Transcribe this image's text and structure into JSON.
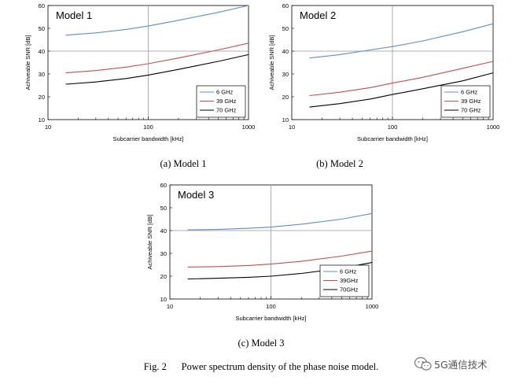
{
  "chart_data": [
    {
      "type": "line",
      "title": "Model 1",
      "xlabel": "Subcarrier bandwidth [kHz]",
      "ylabel": "Achiveable SNR [dB]",
      "xscale": "log",
      "xlim": [
        10,
        1000
      ],
      "ylim": [
        10,
        60
      ],
      "xticks": [
        "10",
        "100",
        "1000"
      ],
      "yticks": [
        "10",
        "20",
        "30",
        "40",
        "50",
        "60"
      ],
      "grid": "major gridlines at x=100 and y=40",
      "legend_position": "bottom-right",
      "caption": "(a) Model 1",
      "series": [
        {
          "name": "6 GHz",
          "color": "#5b8fc8",
          "x": [
            15,
            30,
            60,
            100,
            200,
            500,
            1000
          ],
          "y": [
            47,
            48,
            49.5,
            51,
            53.5,
            57,
            60
          ]
        },
        {
          "name": "39 GHz",
          "color": "#c0504d",
          "x": [
            15,
            30,
            60,
            100,
            200,
            500,
            1000
          ],
          "y": [
            30.5,
            31.5,
            33,
            34.5,
            37,
            40.5,
            43.5
          ]
        },
        {
          "name": "70 GHz",
          "color": "#000000",
          "x": [
            15,
            30,
            60,
            100,
            200,
            500,
            1000
          ],
          "y": [
            25.5,
            26.5,
            28,
            29.5,
            32,
            35.5,
            38.5
          ]
        }
      ]
    },
    {
      "type": "line",
      "title": "Model 2",
      "xlabel": "Subcarrier bandwidth [kHz]",
      "ylabel": "Achiveable SNR [dB]",
      "xscale": "log",
      "xlim": [
        10,
        1000
      ],
      "ylim": [
        10,
        60
      ],
      "xticks": [
        "10",
        "100",
        "1000"
      ],
      "yticks": [
        "10",
        "20",
        "30",
        "40",
        "50",
        "60"
      ],
      "grid": "major gridlines at x=100 and y=40",
      "legend_position": "bottom-right",
      "caption": "(b) Model 2",
      "series": [
        {
          "name": "6 GHz",
          "color": "#5b8fc8",
          "x": [
            15,
            30,
            60,
            100,
            200,
            500,
            1000
          ],
          "y": [
            37,
            38.5,
            40.5,
            42,
            44.5,
            48.5,
            52
          ]
        },
        {
          "name": "39 GHz",
          "color": "#c0504d",
          "x": [
            15,
            30,
            60,
            100,
            200,
            500,
            1000
          ],
          "y": [
            20.5,
            22,
            24,
            26,
            28.5,
            32.5,
            35.5
          ]
        },
        {
          "name": "70 GHz",
          "color": "#000000",
          "x": [
            15,
            30,
            60,
            100,
            200,
            500,
            1000
          ],
          "y": [
            15.5,
            17,
            19,
            21,
            23.5,
            27,
            30.5
          ]
        }
      ]
    },
    {
      "type": "line",
      "title": "Model 3",
      "xlabel": "Subcarrier bandwidth [kHz]",
      "ylabel": "Achiveable SNR [dB]",
      "xscale": "log",
      "xlim": [
        10,
        1000
      ],
      "ylim": [
        10,
        60
      ],
      "xticks": [
        "10",
        "100",
        "1000"
      ],
      "yticks": [
        "10",
        "20",
        "30",
        "40",
        "50",
        "60"
      ],
      "grid": "major gridlines at x=100 and y=40",
      "legend_position": "bottom-right",
      "caption": "(c) Model 3",
      "series": [
        {
          "name": "6 GHz",
          "color": "#5b8fc8",
          "x": [
            15,
            30,
            60,
            100,
            200,
            500,
            1000
          ],
          "y": [
            40.3,
            40.5,
            41,
            41.5,
            42.8,
            45,
            47.5
          ]
        },
        {
          "name": "39GHz",
          "color": "#c0504d",
          "x": [
            15,
            30,
            60,
            100,
            200,
            500,
            1000
          ],
          "y": [
            24,
            24.2,
            24.7,
            25.3,
            26.5,
            28.8,
            31
          ]
        },
        {
          "name": "70GHz",
          "color": "#000000",
          "x": [
            15,
            30,
            60,
            100,
            200,
            500,
            1000
          ],
          "y": [
            18.8,
            19.1,
            19.5,
            20,
            21.2,
            23.5,
            26
          ]
        }
      ]
    }
  ],
  "figure_caption": "Fig. 2      Power spectrum density of the phase noise model.",
  "watermark": "5G通信技术",
  "watermark_icon": "wechat-icon"
}
